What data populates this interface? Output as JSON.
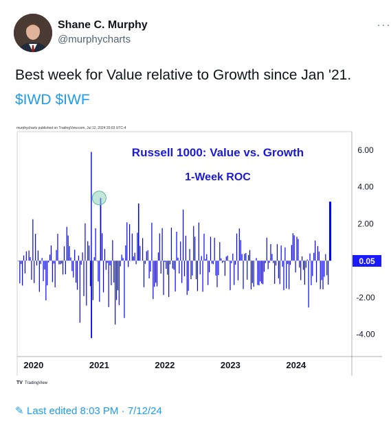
{
  "author": {
    "name": "Shane C. Murphy",
    "handle": "@murphycharts"
  },
  "tweet": {
    "text": "Best week for Value relative to Growth since Jan '21.",
    "tickers": [
      "$IWD",
      "$IWF"
    ],
    "edited_label": "Last edited 8:03 PM · 7/12/24",
    "more_icon": "more-icon"
  },
  "colors": {
    "accent": "#1d9bf0",
    "series": "#0000ff",
    "chart_title": "#1a1ad6"
  },
  "chart_data": {
    "type": "bar",
    "publisher_note": "murphycharts published on TradingView.com, Jul 12, 2024 20:03 UTC-4",
    "title": "Russell 1000: Value vs. Growth",
    "subtitle": "1-Week ROC",
    "x_tick_labels": [
      "2020",
      "2021",
      "2022",
      "2023",
      "2024"
    ],
    "y_tick_labels": [
      "6.00",
      "4.00",
      "2.00",
      "-2.00",
      "-4.00"
    ],
    "y_ticks": [
      6,
      4,
      2,
      -2,
      -4
    ],
    "ylim": [
      -5.2,
      7.0
    ],
    "xlim": [
      2019.75,
      2024.85
    ],
    "last_value_label": "0.05",
    "last_value": 0.05,
    "highlight": {
      "x": 2021.0,
      "y": 3.4
    },
    "watermark": "TradingView",
    "notable_points": [
      {
        "x": 2020.88,
        "y": 5.9
      },
      {
        "x": 2020.88,
        "y": -4.2
      },
      {
        "x": 2021.02,
        "y": 3.4
      },
      {
        "x": 2021.6,
        "y": 3.1
      },
      {
        "x": 2024.52,
        "y": 3.2
      }
    ]
  }
}
